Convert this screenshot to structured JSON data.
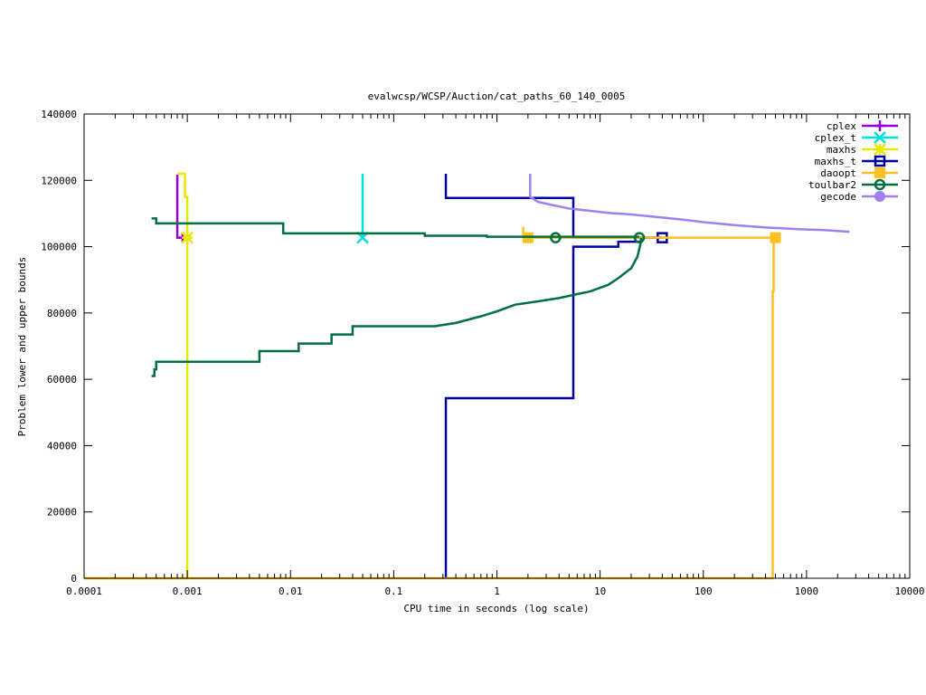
{
  "chart_data": {
    "type": "line",
    "title": "evalwcsp/WCSP/Auction/cat_paths_60_140_0005",
    "xlabel": "CPU time in seconds (log scale)",
    "ylabel": "Problem lower and upper bounds",
    "xscale": "log",
    "xlim": [
      0.0001,
      10000
    ],
    "ylim": [
      0,
      140000
    ],
    "x_ticks": [
      0.0001,
      0.001,
      0.01,
      0.1,
      1,
      10,
      100,
      1000,
      10000
    ],
    "x_tick_labels": [
      "0.0001",
      "0.001",
      "0.01",
      "0.1",
      "1",
      "10",
      "100",
      "1000",
      "10000"
    ],
    "y_ticks": [
      0,
      20000,
      40000,
      60000,
      80000,
      100000,
      120000,
      140000
    ],
    "y_tick_labels": [
      "0",
      "20000",
      "40000",
      "60000",
      "80000",
      "100000",
      "120000",
      "140000"
    ],
    "grid": false,
    "legend_position": "top-right",
    "series": [
      {
        "name": "cplex",
        "color": "#9400d3",
        "marker": "plus",
        "upper": [
          [
            0.0008,
            121700
          ],
          [
            0.0008,
            102700
          ],
          [
            0.0009,
            102700
          ]
        ],
        "lower": [],
        "markers": [
          [
            0.0009,
            102700
          ]
        ]
      },
      {
        "name": "cplex_t",
        "color": "#00e0e0",
        "marker": "cross",
        "upper": [
          [
            0.05,
            122000
          ],
          [
            0.05,
            102700
          ]
        ],
        "lower": [],
        "markers": [
          [
            0.05,
            102700
          ]
        ]
      },
      {
        "name": "maxhs",
        "color": "#e8e800",
        "marker": "star",
        "upper": [
          [
            0.0008,
            122000
          ],
          [
            0.00095,
            122000
          ],
          [
            0.00095,
            115000
          ],
          [
            0.001,
            115000
          ],
          [
            0.001,
            102700
          ]
        ],
        "lower": [
          [
            0.0001,
            0
          ],
          [
            0.001,
            0
          ],
          [
            0.001,
            102700
          ]
        ],
        "markers": [
          [
            0.001,
            102700
          ]
        ]
      },
      {
        "name": "maxhs_t",
        "color": "#0000a0",
        "marker": "square",
        "upper": [
          [
            0.32,
            122000
          ],
          [
            0.32,
            114700
          ],
          [
            5.5,
            114700
          ],
          [
            5.5,
            102700
          ],
          [
            40,
            102700
          ]
        ],
        "lower": [
          [
            0.32,
            0
          ],
          [
            0.32,
            54300
          ],
          [
            5.5,
            54300
          ],
          [
            5.5,
            100000
          ],
          [
            15,
            100000
          ],
          [
            15,
            101500
          ],
          [
            25,
            101500
          ],
          [
            25,
            102700
          ],
          [
            40,
            102700
          ]
        ],
        "markers": [
          [
            40,
            102700
          ]
        ]
      },
      {
        "name": "daoopt",
        "color": "#ffc020",
        "marker": "filled-square",
        "upper": [
          [
            1.8,
            106000
          ],
          [
            1.8,
            102700
          ],
          [
            480,
            102700
          ]
        ],
        "lower": [
          [
            0.0001,
            0
          ],
          [
            470,
            0
          ],
          [
            470,
            86500
          ],
          [
            480,
            86500
          ],
          [
            480,
            102700
          ]
        ],
        "markers": [
          [
            2.0,
            102700
          ],
          [
            500,
            102700
          ]
        ]
      },
      {
        "name": "toulbar2",
        "color": "#007040",
        "marker": "circle",
        "upper": [
          [
            0.00045,
            108500
          ],
          [
            0.0005,
            108500
          ],
          [
            0.0005,
            107000
          ],
          [
            0.0085,
            107000
          ],
          [
            0.0085,
            104000
          ],
          [
            0.2,
            104000
          ],
          [
            0.2,
            103300
          ],
          [
            0.8,
            103300
          ],
          [
            0.8,
            103000
          ],
          [
            24,
            103000
          ]
        ],
        "lower": [
          [
            0.00045,
            61000
          ],
          [
            0.00048,
            61000
          ],
          [
            0.00048,
            63000
          ],
          [
            0.0005,
            63000
          ],
          [
            0.0005,
            65300
          ],
          [
            0.005,
            65300
          ],
          [
            0.005,
            68500
          ],
          [
            0.012,
            68500
          ],
          [
            0.012,
            70800
          ],
          [
            0.025,
            70800
          ],
          [
            0.025,
            73500
          ],
          [
            0.04,
            73500
          ],
          [
            0.04,
            76000
          ],
          [
            0.25,
            76000
          ],
          [
            0.4,
            77000
          ],
          [
            0.7,
            79000
          ],
          [
            1.0,
            80500
          ],
          [
            1.5,
            82500
          ],
          [
            2.5,
            83500
          ],
          [
            4.0,
            84500
          ],
          [
            6.0,
            85700
          ],
          [
            8.0,
            86500
          ],
          [
            12.0,
            88500
          ],
          [
            15.0,
            90500
          ],
          [
            20.0,
            93500
          ],
          [
            23.0,
            97000
          ],
          [
            24.5,
            100500
          ],
          [
            25.0,
            102700
          ]
        ],
        "markers": [
          [
            3.7,
            102700
          ],
          [
            24,
            102700
          ]
        ]
      },
      {
        "name": "gecode",
        "color": "#a080f0",
        "marker": "filled-circle",
        "upper": [
          [
            2.1,
            122000
          ],
          [
            2.1,
            115000
          ],
          [
            2.5,
            113500
          ],
          [
            3.5,
            112500
          ],
          [
            5.0,
            111500
          ],
          [
            8.0,
            110800
          ],
          [
            12.0,
            110200
          ],
          [
            20.0,
            109700
          ],
          [
            40.0,
            108800
          ],
          [
            70.0,
            108000
          ],
          [
            100.0,
            107400
          ],
          [
            200.0,
            106500
          ],
          [
            400.0,
            105800
          ],
          [
            800.0,
            105300
          ],
          [
            1500.0,
            105000
          ],
          [
            2600.0,
            104500
          ]
        ],
        "lower": [],
        "markers": []
      }
    ]
  }
}
